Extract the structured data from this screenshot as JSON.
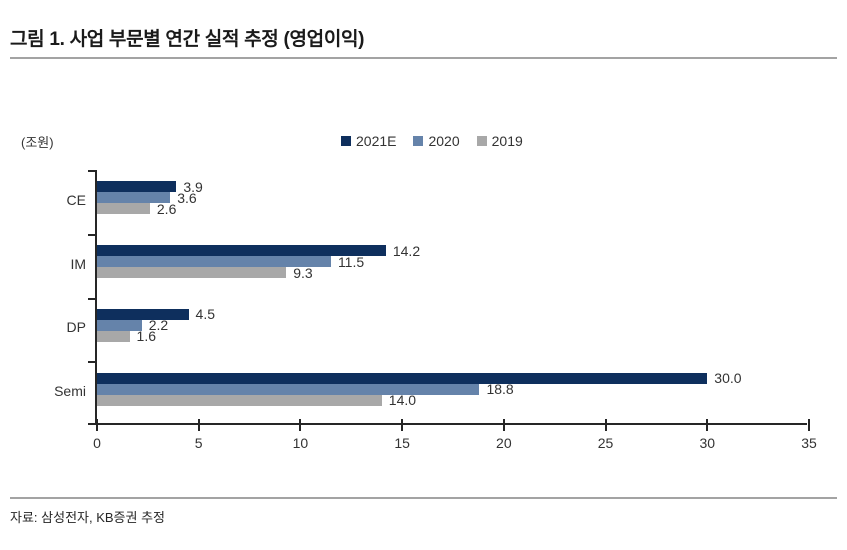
{
  "title": "그림 1. 사업 부문별 연간 실적 추정 (영업이익)",
  "source": "자료: 삼성전자, KB증권 추정",
  "chart_data": {
    "type": "bar",
    "orientation": "horizontal",
    "title": "사업 부문별 연간 실적 추정 (영업이익)",
    "unit_label": "(조원)",
    "categories": [
      "CE",
      "IM",
      "DP",
      "Semi"
    ],
    "series": [
      {
        "name": "2021E",
        "color": "#0e2f5d",
        "values": [
          3.9,
          14.2,
          4.5,
          30.0
        ]
      },
      {
        "name": "2020",
        "color": "#6583aa",
        "values": [
          3.6,
          11.5,
          2.2,
          18.8
        ]
      },
      {
        "name": "2019",
        "color": "#a8a8a8",
        "values": [
          2.6,
          9.3,
          1.6,
          14.0
        ]
      }
    ],
    "xlim": [
      0,
      35
    ],
    "x_ticks": [
      0,
      5,
      10,
      15,
      20,
      25,
      30,
      35
    ],
    "legend_position": "top",
    "grid": false,
    "axis_color": "#262626",
    "label_color": "#333333"
  }
}
